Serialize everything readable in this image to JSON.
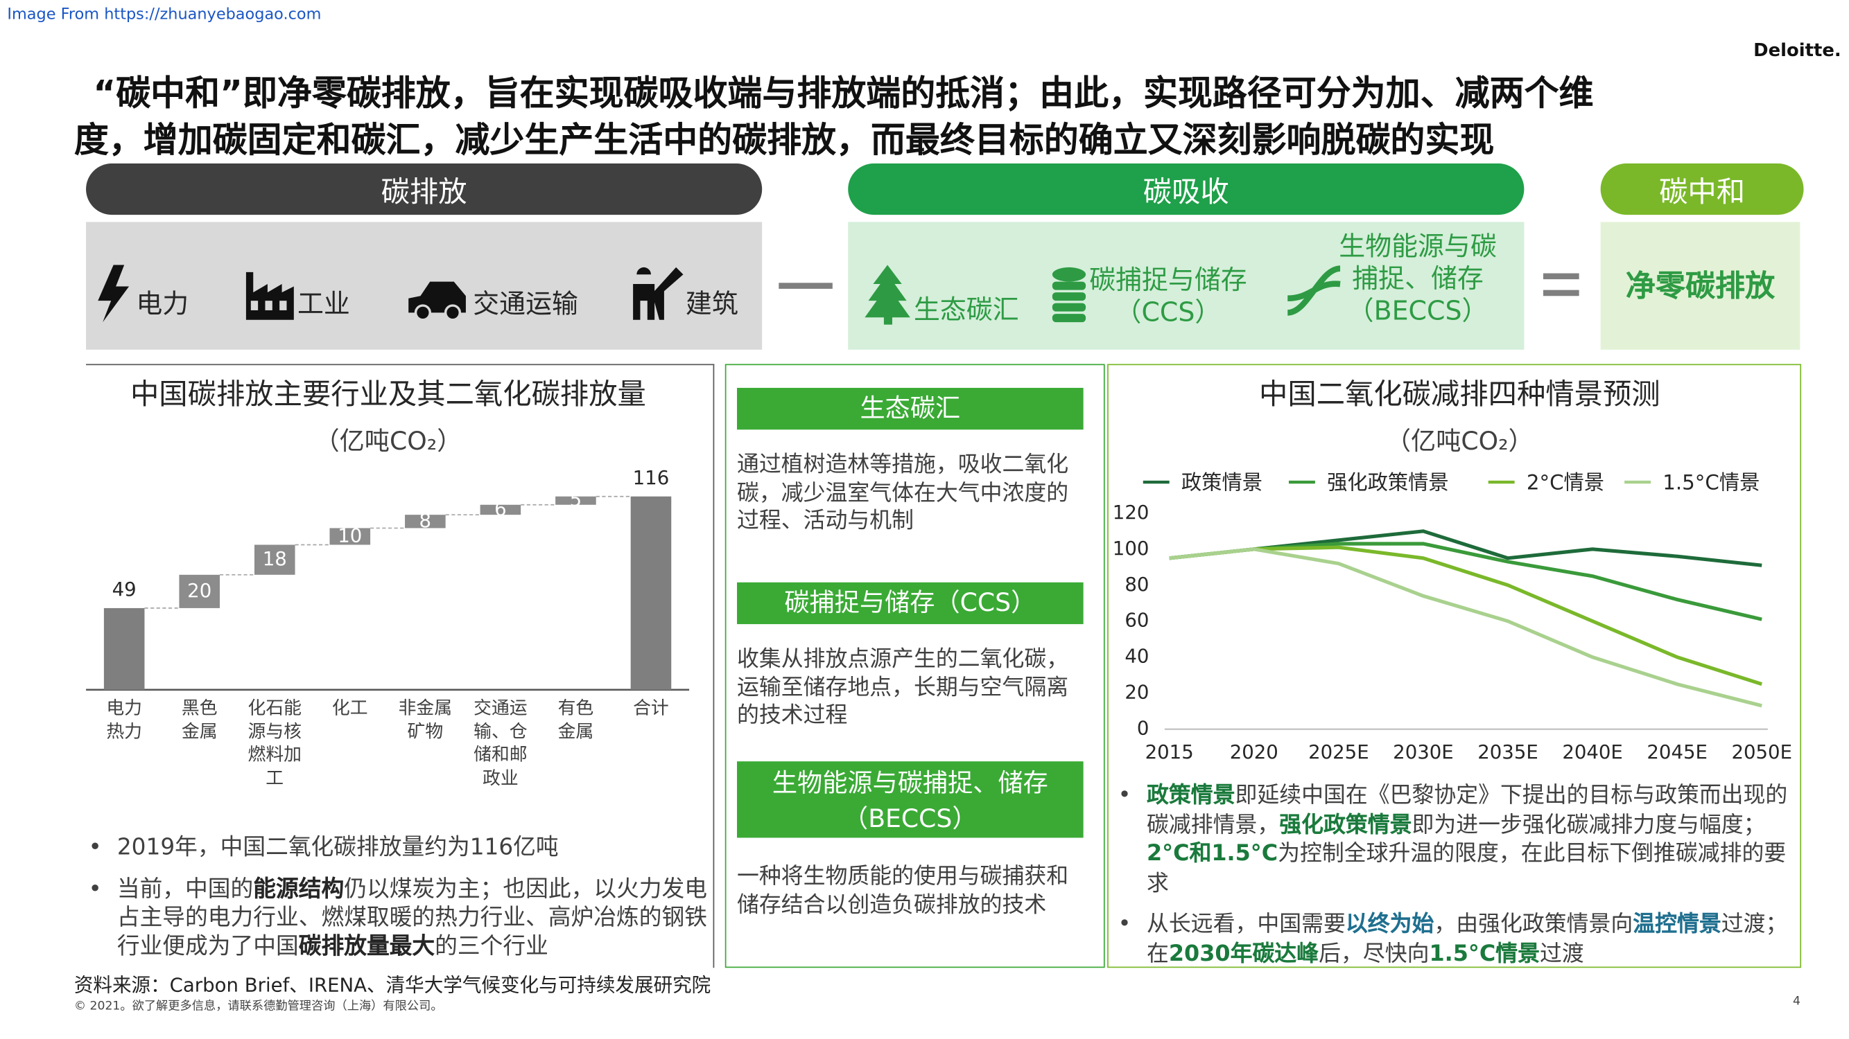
{
  "source_link": "Image From https://zhuanyebaogao.com",
  "logo": "Deloitte.",
  "title_lines": [
    "“碳中和”即净零碳排放，旨在实现碳吸收端与排放端的抵消；由此，实现路径可分为加、减两个维",
    "度，增加碳固定和碳汇，减少生产生活中的碳排放，而最终目标的确立又深刻影响脱碳的实现"
  ],
  "sections": [
    "碳排放",
    "碳吸收",
    "碳中和"
  ],
  "emission_items": [
    "电力",
    "工业",
    "交通运输",
    "建筑"
  ],
  "absorption_items": [
    [
      "生态碳汇"
    ],
    [
      "碳捕捉与储存",
      "（CCS）"
    ],
    [
      "生物能源与碳",
      "捕捉、储存",
      "（BECCS）"
    ]
  ],
  "neutral_result": "净零碳排放",
  "left_bullets": [
    [
      "2019年，中国二氧化碳排放量约为116亿吨"
    ],
    [
      "当前，中国的",
      {
        "bold": "能源结构"
      },
      "仍以煤炭为主；也因此，以火力发电占主导的电力行业、燃煤取暖的热力行业、高炉冶炼的钢铁行业便成为了中国",
      {
        "bold": "碳排放量最大"
      },
      "的三个行业"
    ]
  ],
  "methods": [
    {
      "heading": "生态碳汇",
      "text": "通过植树造林等措施，吸收二氧化碳，减少温室气体在大气中浓度的过程、活动与机制"
    },
    {
      "heading": "碳捕捉与储存（CCS）",
      "text": "收集从排放点源产生的二氧化碳，运输至储存地点，长期与空气隔离的技术过程"
    },
    {
      "heading": "生物能源与碳捕捉、储存（BECCS）",
      "text": "一种将生物质能的使用与碳捕获和储存结合以创造负碳排放的技术"
    }
  ],
  "right_bullets": [
    [
      {
        "bold": "政策情景",
        "color": "#1a7a3c"
      },
      "即延续中国在《巴黎协定》下提出的目标与政策而出现的碳减排情景，",
      {
        "bold": "强化政策情景",
        "color": "#1a7a3c"
      },
      "即为进一步强化碳减排力度与幅度；",
      {
        "bold": "2°C和1.5°C",
        "color": "#1a7a3c"
      },
      "为控制全球升温的限度，在此目标下倒推碳减排的要求"
    ],
    [
      "从长远看，中国需要",
      {
        "bold": "以终为始",
        "color": "#1f6f8f"
      },
      "，由强化政策情景向",
      {
        "bold": "温控情景",
        "color": "#1f6f8f"
      },
      "过渡；在",
      {
        "bold": "2030年碳达峰",
        "color": "#1a7a3c"
      },
      "后，尽快向",
      {
        "bold": "1.5°C情景",
        "color": "#1a7a3c"
      },
      "过渡"
    ]
  ],
  "source": "资料来源：Carbon Brief、IRENA、清华大学气候变化与可持续发展研究院",
  "copyright": "© 2021。欲了解更多信息，请联系德勤管理咨询（上海）有限公司。",
  "page_number": 4,
  "chart_data": [
    {
      "type": "waterfall",
      "title": "中国碳排放主要行业及其二氧化碳排放量",
      "subtitle": "（亿吨CO₂）",
      "categories": [
        "电力热力",
        "黑色金属",
        "化石能源与核燃料加工",
        "化工",
        "非金属矿物",
        "交通运输、仓储和邮政业",
        "有色金属"
      ],
      "values": [
        49,
        20,
        18,
        10,
        8,
        6,
        5
      ],
      "total_label": "合计",
      "total": 116,
      "color": "#7f7f7f"
    },
    {
      "type": "line",
      "title": "中国二氧化碳减排四种情景预测",
      "subtitle": "（亿吨CO₂）",
      "categories": [
        "2015",
        "2020",
        "2025E",
        "2030E",
        "2035E",
        "2040E",
        "2045E",
        "2050E"
      ],
      "series": [
        {
          "name": "政策情景",
          "color": "#1e6b3a",
          "values": [
            95,
            100,
            105,
            110,
            95,
            100,
            96,
            91
          ]
        },
        {
          "name": "强化政策情景",
          "color": "#3a9a3a",
          "values": [
            95,
            100,
            103,
            103,
            93,
            85,
            72,
            61
          ]
        },
        {
          "name": "2°C情景",
          "color": "#7ab82a",
          "values": [
            95,
            100,
            101,
            95,
            80,
            60,
            40,
            25
          ]
        },
        {
          "name": "1.5°C情景",
          "color": "#a9d18e",
          "values": [
            95,
            100,
            92,
            74,
            60,
            40,
            25,
            13
          ]
        }
      ],
      "ylim": [
        0,
        120
      ],
      "yticks": [
        0,
        20,
        40,
        60,
        80,
        100,
        120
      ]
    }
  ]
}
